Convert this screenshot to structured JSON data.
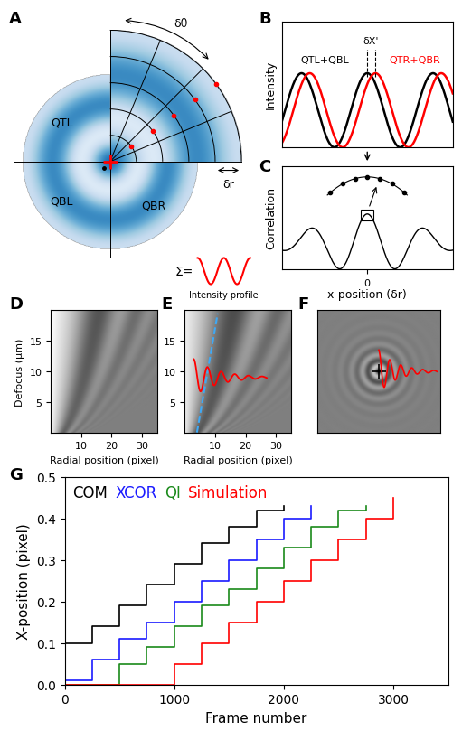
{
  "panel_labels": [
    "A",
    "B",
    "C",
    "D",
    "E",
    "F",
    "G"
  ],
  "A": {
    "quadrants": [
      "QTL",
      "QBL",
      "QBR"
    ],
    "angle_label": "δθ",
    "radius_label": "δr",
    "sum_label": "Σ=",
    "profile_label": "Intensity profile"
  },
  "B": {
    "ylabel": "Intensity",
    "left_label": "QTL+QBL",
    "right_label": "QTR+QBR",
    "shift_label": "δX'"
  },
  "C": {
    "ylabel": "Correlation",
    "xlabel": "x-position (δr)",
    "xlim": [
      -3,
      3
    ],
    "xticks": [
      0
    ]
  },
  "lookup": {
    "ylabel": "Defocus (µm)",
    "xlabel": "Radial position (pixel)",
    "xlim": [
      0,
      35
    ],
    "ylim": [
      0,
      20
    ],
    "xticks": [
      10,
      20,
      30
    ],
    "yticks": [
      5,
      10,
      15
    ]
  },
  "chart_data": {
    "type": "line",
    "xlabel": "Frame number",
    "ylabel": "X-position (pixel)",
    "xlim": [
      0,
      3500
    ],
    "ylim": [
      0,
      0.5
    ],
    "xticks": [
      0,
      1000,
      2000,
      3000
    ],
    "yticks": [
      0.0,
      0.1,
      0.2,
      0.3,
      0.4,
      0.5
    ],
    "legend": "upper left",
    "line_style": "steps",
    "series": [
      {
        "name": "COM",
        "color": "#000000",
        "x": [
          0,
          250,
          500,
          750,
          1000,
          1250,
          1500,
          1750,
          2000
        ],
        "values": [
          0.1,
          0.14,
          0.19,
          0.24,
          0.29,
          0.34,
          0.38,
          0.42,
          0.43
        ]
      },
      {
        "name": "XCOR",
        "color": "#1a1aff",
        "x": [
          0,
          250,
          500,
          750,
          1000,
          1250,
          1500,
          1750,
          2000,
          2250
        ],
        "values": [
          0.01,
          0.06,
          0.11,
          0.15,
          0.2,
          0.25,
          0.3,
          0.35,
          0.4,
          0.43
        ]
      },
      {
        "name": "QI",
        "color": "#1a8a1a",
        "x": [
          0,
          500,
          750,
          1000,
          1250,
          1500,
          1750,
          2000,
          2250,
          2500,
          2750
        ],
        "values": [
          0.0,
          0.05,
          0.09,
          0.14,
          0.19,
          0.23,
          0.28,
          0.33,
          0.38,
          0.42,
          0.43
        ]
      },
      {
        "name": "Simulation",
        "color": "#ff0000",
        "x": [
          0,
          1000,
          1250,
          1500,
          1750,
          2000,
          2250,
          2500,
          2750,
          3000
        ],
        "values": [
          0.0,
          0.05,
          0.1,
          0.15,
          0.2,
          0.25,
          0.3,
          0.35,
          0.4,
          0.45
        ]
      }
    ]
  }
}
